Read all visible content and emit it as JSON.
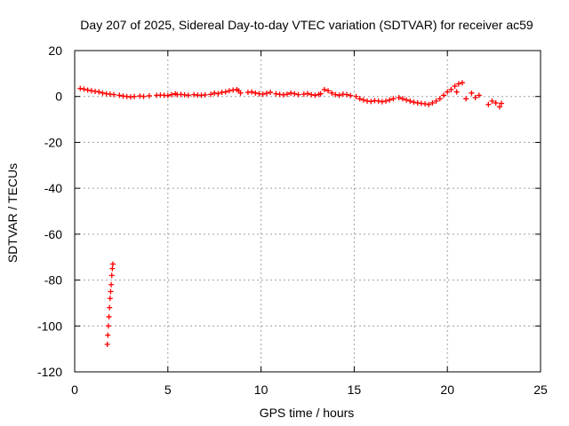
{
  "chart_data": {
    "type": "scatter",
    "title": "Day 207 of 2025, Sidereal Day-to-day VTEC variation (SDTVAR) for receiver ac59",
    "xlabel": "GPS time / hours",
    "ylabel": "SDTVAR / TECUs",
    "xlim": [
      0,
      25
    ],
    "ylim": [
      -120,
      20
    ],
    "xticks": [
      0,
      5,
      10,
      15,
      20,
      25
    ],
    "yticks": [
      20,
      0,
      -20,
      -40,
      -60,
      -80,
      -100,
      -120
    ],
    "grid": true,
    "marker": "+",
    "color": "#ff0000",
    "series": [
      {
        "name": "SDTVAR",
        "x": [
          0.3,
          0.5,
          0.7,
          0.9,
          1.1,
          1.3,
          1.5,
          1.7,
          1.9,
          2.1,
          2.4,
          2.6,
          2.8,
          3.0,
          3.2,
          3.5,
          3.7,
          4.0,
          4.4,
          4.6,
          4.8,
          5.0,
          5.2,
          5.4,
          5.5,
          5.7,
          5.9,
          6.1,
          6.4,
          6.6,
          6.8,
          7.0,
          7.3,
          7.5,
          7.7,
          7.9,
          8.1,
          8.3,
          8.5,
          8.7,
          8.8,
          8.9,
          9.3,
          9.5,
          9.7,
          9.9,
          10.1,
          10.3,
          10.5,
          10.8,
          11.0,
          11.2,
          11.4,
          11.6,
          11.8,
          12.0,
          12.3,
          12.5,
          12.7,
          12.9,
          13.1,
          13.2,
          13.4,
          13.6,
          13.8,
          14.0,
          14.2,
          14.4,
          14.6,
          14.8,
          15.1,
          15.3,
          15.5,
          15.7,
          15.9,
          16.1,
          16.3,
          16.5,
          16.7,
          16.9,
          17.1,
          17.4,
          17.6,
          17.8,
          18.0,
          18.2,
          18.4,
          18.6,
          18.8,
          19.0,
          19.2,
          19.4,
          19.6,
          19.8,
          20.0,
          20.2,
          20.4,
          20.6,
          20.8,
          20.5,
          21.0,
          21.3,
          21.5,
          21.7,
          22.2,
          22.4,
          22.6,
          22.8,
          22.9,
          1.75,
          1.78,
          1.81,
          1.84,
          1.87,
          1.9,
          1.93,
          1.96,
          1.99,
          2.02,
          2.05
        ],
        "y": [
          3.5,
          3.2,
          2.8,
          2.5,
          2.2,
          2.0,
          1.5,
          1.2,
          1.0,
          0.8,
          0.5,
          0.2,
          0.0,
          -0.2,
          0.0,
          0.2,
          0.0,
          0.3,
          0.5,
          0.6,
          0.5,
          0.4,
          0.8,
          1.2,
          0.8,
          0.9,
          0.7,
          0.5,
          0.8,
          0.6,
          0.5,
          0.7,
          0.9,
          1.5,
          1.2,
          1.8,
          2.0,
          2.5,
          2.8,
          3.0,
          2.5,
          1.5,
          1.8,
          2.0,
          1.5,
          1.2,
          1.0,
          1.4,
          1.8,
          1.2,
          0.9,
          0.7,
          1.0,
          1.5,
          1.2,
          0.8,
          1.0,
          1.3,
          0.8,
          0.5,
          0.9,
          1.2,
          3.0,
          2.5,
          1.5,
          0.8,
          0.5,
          1.0,
          0.8,
          0.4,
          0.0,
          -1.0,
          -1.5,
          -2.0,
          -2.2,
          -1.8,
          -2.0,
          -2.3,
          -2.0,
          -1.5,
          -1.0,
          -0.5,
          -1.0,
          -1.5,
          -2.0,
          -2.5,
          -2.8,
          -3.0,
          -3.2,
          -3.5,
          -2.8,
          -2.0,
          -1.0,
          0.5,
          2.0,
          3.0,
          4.5,
          5.5,
          6.0,
          2.0,
          -1.0,
          1.5,
          -0.5,
          0.5,
          -3.5,
          -2.0,
          -2.8,
          -4.5,
          -3.0,
          -108,
          -104,
          -100,
          -96,
          -92,
          -88,
          -85,
          -82,
          -78,
          -75,
          -73
        ]
      }
    ]
  }
}
